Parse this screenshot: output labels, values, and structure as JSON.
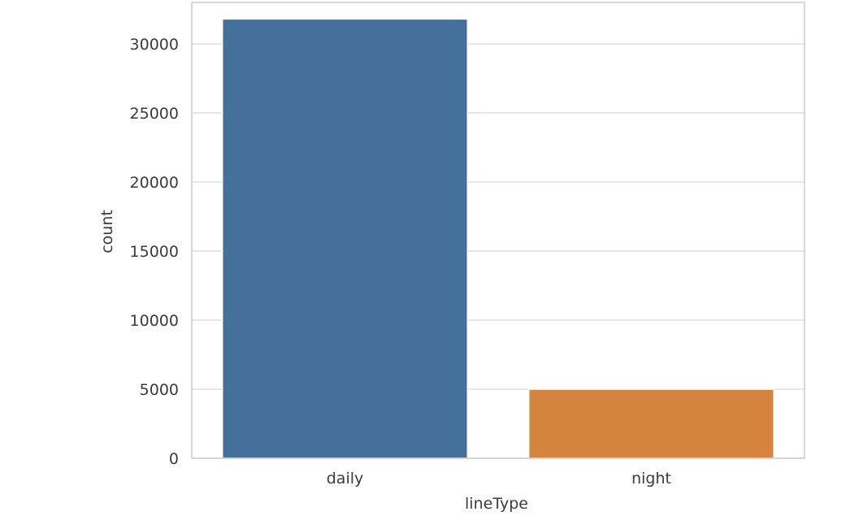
{
  "chart_data": {
    "type": "bar",
    "categories": [
      "daily",
      "night"
    ],
    "values": [
      31800,
      5000
    ],
    "colors": [
      "#44709b",
      "#d5843f"
    ],
    "xlabel": "lineType",
    "ylabel": "count",
    "ylim": [
      0,
      33000
    ],
    "yticks": [
      0,
      5000,
      10000,
      15000,
      20000,
      25000,
      30000
    ],
    "grid": true,
    "legend": "none"
  }
}
